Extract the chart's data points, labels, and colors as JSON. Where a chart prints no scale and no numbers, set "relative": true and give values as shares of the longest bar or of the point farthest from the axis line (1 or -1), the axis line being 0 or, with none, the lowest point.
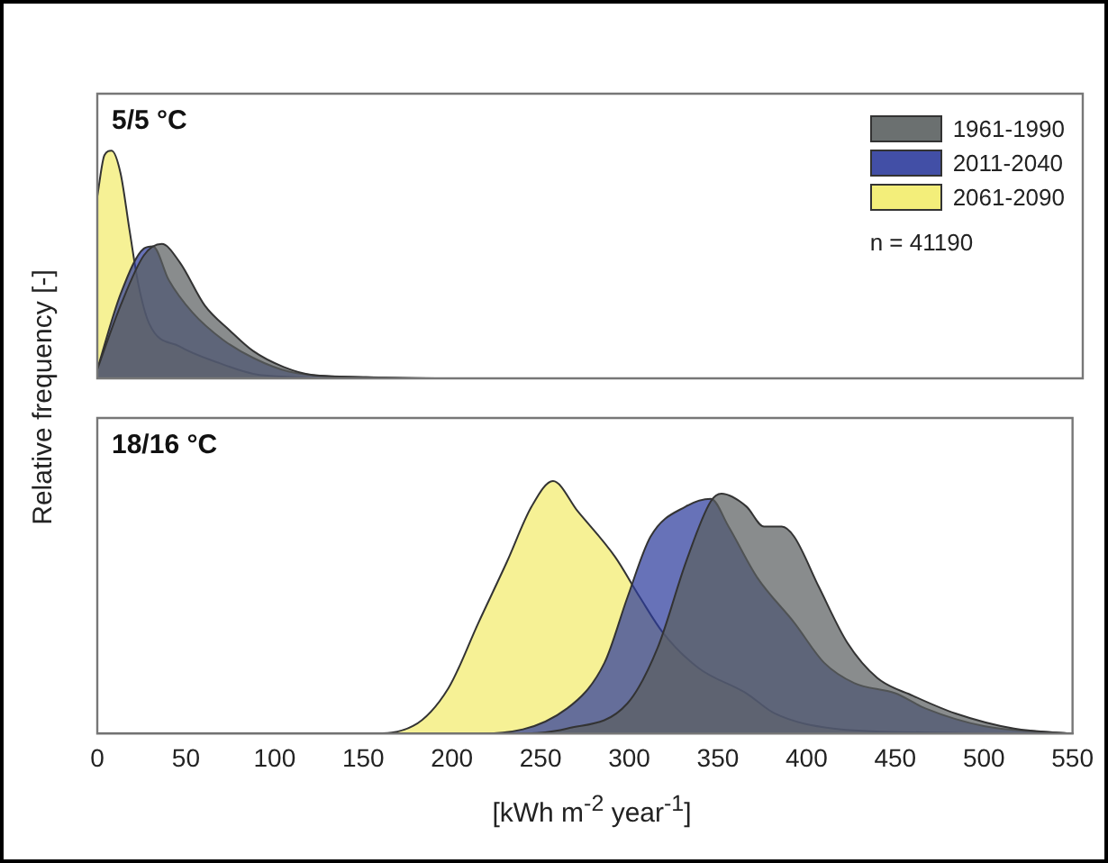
{
  "chart_data": [
    {
      "type": "area",
      "title": "5/5 °C",
      "ylabel": "Relative frequency [-]",
      "relative": true,
      "legend": "top right",
      "tick_labels": false,
      "grid": false,
      "marker": "none",
      "annotations": [
        "n = 41190"
      ],
      "xlim": [
        0,
        550
      ],
      "xticks": [
        0,
        50,
        100,
        150,
        200,
        250,
        300,
        350,
        400,
        450,
        500,
        550
      ],
      "series": [
        {
          "name": "1961-1990",
          "color": "#5b6061",
          "x": [
            0,
            13,
            26,
            36,
            46,
            60,
            74,
            87,
            104,
            120,
            150,
            200,
            550
          ],
          "values": [
            0.04,
            0.32,
            0.54,
            0.59,
            0.51,
            0.32,
            0.21,
            0.12,
            0.05,
            0.015,
            0.005,
            0,
            0
          ]
        },
        {
          "name": "2011-2040",
          "color": "#2d3c9c",
          "x": [
            0,
            13,
            26,
            31,
            40,
            53,
            70,
            87,
            107,
            150,
            200,
            550
          ],
          "values": [
            0.04,
            0.37,
            0.57,
            0.58,
            0.43,
            0.29,
            0.17,
            0.09,
            0.03,
            0.005,
            0,
            0
          ]
        },
        {
          "name": "2061-2090",
          "color": "#f2ec6c",
          "x": [
            0,
            4,
            8,
            13,
            18,
            23,
            29,
            46,
            67,
            87,
            110,
            150,
            550
          ],
          "values": [
            0.8,
            0.98,
            1,
            0.9,
            0.65,
            0.41,
            0.24,
            0.14,
            0.07,
            0.02,
            0.005,
            0,
            0
          ]
        }
      ]
    },
    {
      "type": "area",
      "title": "18/16 °C",
      "xlabel": "[kWh m$^{-2}$ year$^{-1}$]",
      "relative": true,
      "tick_labels": "x",
      "grid": false,
      "marker": "none",
      "xlim": [
        0,
        550
      ],
      "xticks": [
        0,
        50,
        100,
        150,
        200,
        250,
        300,
        350,
        400,
        450,
        500,
        550
      ],
      "series": [
        {
          "color": "#5b6061",
          "x": [
            0,
            231,
            265,
            299,
            316,
            332,
            346,
            352,
            366,
            376,
            386,
            393,
            407,
            423,
            440,
            460,
            484,
            517,
            550
          ],
          "values": [
            0,
            0,
            0.02,
            0.12,
            0.34,
            0.68,
            0.92,
            0.95,
            0.9,
            0.82,
            0.82,
            0.78,
            0.58,
            0.36,
            0.22,
            0.15,
            0.08,
            0.02,
            0
          ]
        },
        {
          "color": "#2d3c9c",
          "x": [
            0,
            215,
            265,
            286,
            299,
            312,
            332,
            346,
            356,
            372,
            393,
            410,
            427,
            450,
            467,
            500,
            550
          ],
          "values": [
            0,
            0,
            0.1,
            0.28,
            0.54,
            0.78,
            0.9,
            0.93,
            0.82,
            0.62,
            0.44,
            0.28,
            0.2,
            0.16,
            0.1,
            0.03,
            0
          ]
        },
        {
          "color": "#f2ec6c",
          "x": [
            0,
            154,
            178,
            198,
            215,
            231,
            245,
            257,
            271,
            292,
            306,
            319,
            339,
            366,
            382,
            415,
            465,
            550
          ],
          "values": [
            0,
            0,
            0.03,
            0.18,
            0.44,
            0.68,
            0.9,
            1,
            0.88,
            0.7,
            0.54,
            0.4,
            0.26,
            0.16,
            0.08,
            0.02,
            0.005,
            0
          ]
        }
      ]
    }
  ]
}
